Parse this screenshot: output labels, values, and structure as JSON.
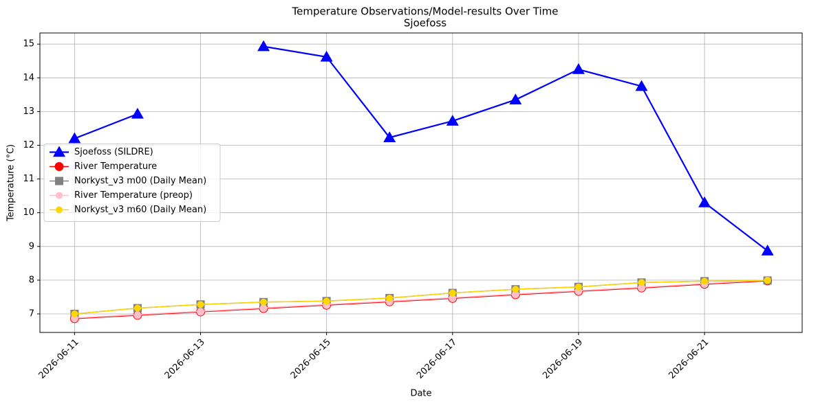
{
  "chart_data": {
    "type": "line",
    "title": "Temperature Observations/Model-results Over Time",
    "subtitle": "Sjoefoss",
    "xlabel": "Date",
    "ylabel": "Temperature (°C)",
    "x": [
      "2026-06-11",
      "2026-06-12",
      "2026-06-13",
      "2026-06-14",
      "2026-06-15",
      "2026-06-16",
      "2026-06-17",
      "2026-06-18",
      "2026-06-19",
      "2026-06-20",
      "2026-06-21",
      "2026-06-22"
    ],
    "xticks": [
      "2026-06-11",
      "2026-06-13",
      "2026-06-15",
      "2026-06-17",
      "2026-06-19",
      "2026-06-21"
    ],
    "ylim": [
      6.45,
      15.33
    ],
    "yticks": [
      7,
      8,
      9,
      10,
      11,
      12,
      13,
      14,
      15
    ],
    "grid": true,
    "legend": "center left",
    "series": [
      {
        "name": "Sjoefoss (SILDRE)",
        "color": "#0000ff",
        "marker": "triangle",
        "linewidth": 2.2,
        "values": [
          12.2,
          12.93,
          null,
          14.93,
          14.62,
          12.23,
          12.72,
          13.35,
          14.25,
          13.75,
          10.3,
          8.87
        ]
      },
      {
        "name": "River Temperature",
        "color": "#ff0000",
        "marker": "circle",
        "linewidth": 1.5,
        "values": [
          6.86,
          6.96,
          7.06,
          7.16,
          7.26,
          7.36,
          7.46,
          7.57,
          7.67,
          7.77,
          7.88,
          7.98
        ]
      },
      {
        "name": "Norkyst_v3 m00 (Daily Mean)",
        "color": "#808080",
        "marker": "square",
        "linewidth": 1.5,
        "values": [
          7.0,
          7.17,
          7.28,
          7.35,
          7.38,
          7.47,
          7.62,
          7.73,
          7.8,
          7.93,
          7.97,
          7.99
        ]
      },
      {
        "name": "River Temperature (preop)",
        "color": "#ffc0cb",
        "marker": "circle",
        "linewidth": 1.5,
        "values": [
          6.88,
          6.98,
          7.08,
          7.18,
          7.28,
          7.38,
          7.48,
          7.59,
          7.69,
          7.79,
          7.9,
          8.0
        ]
      },
      {
        "name": "Norkyst_v3 m60 (Daily Mean)",
        "color": "#ffd700",
        "marker": "circle",
        "linewidth": 1.5,
        "values": [
          7.0,
          7.17,
          7.28,
          7.35,
          7.38,
          7.47,
          7.62,
          7.73,
          7.8,
          7.93,
          7.97,
          7.99
        ]
      }
    ]
  }
}
